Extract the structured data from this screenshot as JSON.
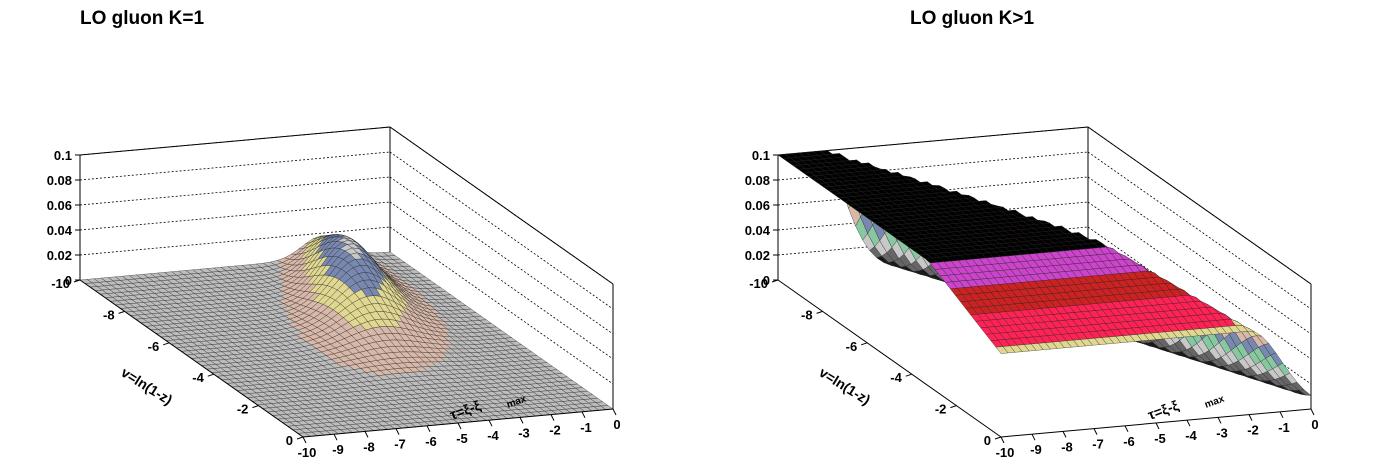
{
  "chart_data": [
    {
      "type": "surface3d",
      "title": "LO  gluon  K=1",
      "xlabel": "τ=ξ-ξ",
      "xlabel_sub": "max",
      "ylabel": "v=ln(1-z)",
      "zlabel": "",
      "xlim": [
        -10,
        0
      ],
      "ylim": [
        -10,
        0
      ],
      "zlim": [
        0,
        0.1
      ],
      "x_ticks": [
        "-10",
        "-9",
        "-8",
        "-7",
        "-6",
        "-5",
        "-4",
        "-3",
        "-2",
        "-1",
        "0"
      ],
      "y_ticks": [
        "0",
        "-2",
        "-4",
        "-6",
        "-8",
        "-10"
      ],
      "z_ticks": [
        "0",
        "0.02",
        "0.04",
        "0.06",
        "0.08",
        "0.1"
      ],
      "peak": {
        "tau": -1.5,
        "v": -7.5,
        "value": 0.045
      },
      "grid": true,
      "colors": [
        "#1a1a1a",
        "#666666",
        "#b08888",
        "#88c8a0",
        "#c8c8c8",
        "#7888b0",
        "#e0d890",
        "#d8b8a8"
      ]
    },
    {
      "type": "surface3d",
      "title": "LO  gluon  K>1",
      "xlabel": "τ=ξ-ξ",
      "xlabel_sub": "max",
      "ylabel": "v=ln(1-z)",
      "zlabel": "",
      "xlim": [
        -10,
        0
      ],
      "ylim": [
        -10,
        0
      ],
      "zlim": [
        0,
        0.1
      ],
      "x_ticks": [
        "-10",
        "-9",
        "-8",
        "-7",
        "-6",
        "-5",
        "-4",
        "-3",
        "-2",
        "-1",
        "0"
      ],
      "y_ticks": [
        "0",
        "-2",
        "-4",
        "-6",
        "-8",
        "-10"
      ],
      "z_ticks": [
        "0",
        "0.02",
        "0.04",
        "0.06",
        "0.08",
        "0.1"
      ],
      "plateau_value": 0.1,
      "grid": true,
      "colors": [
        "#000000",
        "#44dd44",
        "#cc44cc",
        "#cc2222",
        "#ff2255",
        "#e0d890",
        "#d8b8a8",
        "#7888b0",
        "#88c8a0",
        "#c8c8c8",
        "#666666",
        "#1a1a1a"
      ]
    }
  ]
}
